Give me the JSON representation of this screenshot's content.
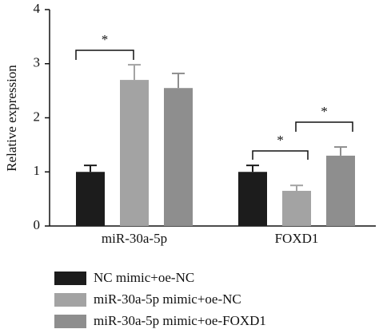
{
  "chart_data": {
    "type": "bar",
    "y_label": "Relative expression",
    "categories": [
      "miR-30a-5p",
      "FOXD1"
    ],
    "series": [
      {
        "name": "NC mimic+oe-NC",
        "color": "#1c1c1c",
        "values": [
          1.0,
          1.0
        ],
        "errors": [
          0.12,
          0.12
        ]
      },
      {
        "name": "miR-30a-5p mimic+oe-NC",
        "color": "#a3a3a3",
        "values": [
          2.7,
          0.65
        ],
        "errors": [
          0.28,
          0.1
        ]
      },
      {
        "name": "miR-30a-5p mimic+oe-FOXD1",
        "color": "#8e8e8e",
        "values": [
          2.55,
          1.3
        ],
        "errors": [
          0.27,
          0.16
        ]
      }
    ],
    "ylim": [
      0,
      4
    ],
    "yticks": [
      0,
      1,
      2,
      3,
      4
    ],
    "annotations": [
      "*",
      "*",
      "*"
    ]
  }
}
